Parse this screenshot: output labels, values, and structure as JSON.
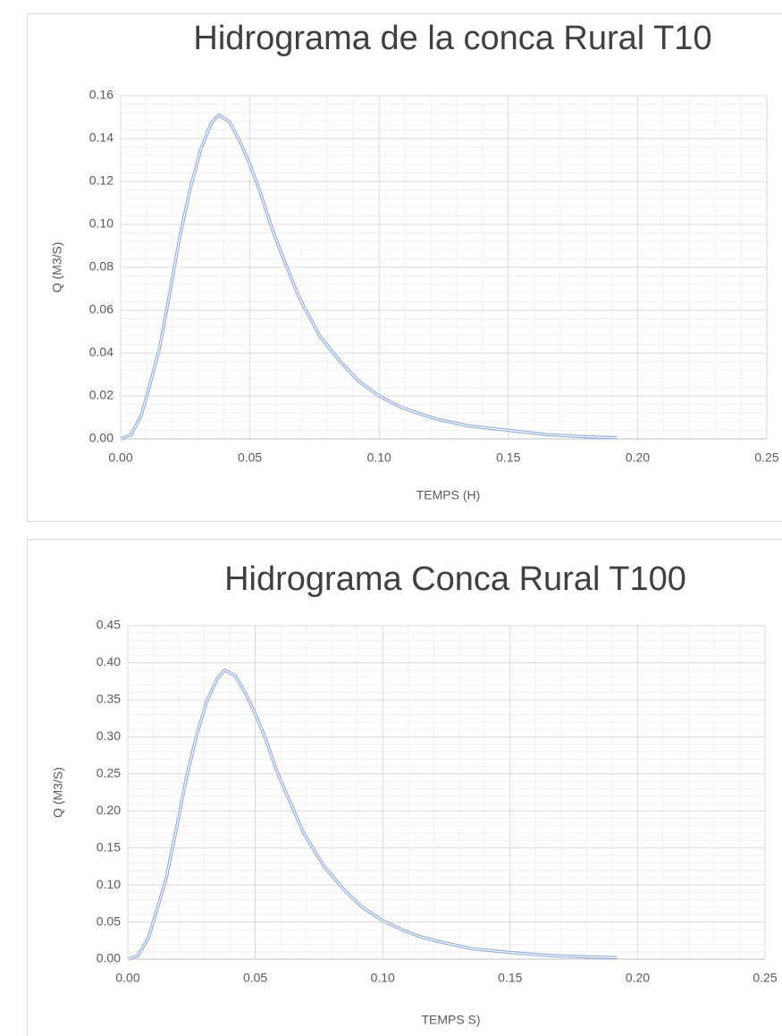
{
  "chart_data": [
    {
      "type": "line",
      "title": "Hidrograma de la conca Rural T10",
      "x_label": "TEMPS (H)",
      "y_label": "Q (M3/S)",
      "x": [
        0,
        0.004,
        0.008,
        0.011,
        0.015,
        0.019,
        0.023,
        0.027,
        0.031,
        0.035,
        0.038,
        0.042,
        0.046,
        0.05,
        0.054,
        0.058,
        0.062,
        0.069,
        0.077,
        0.085,
        0.092,
        0.1,
        0.108,
        0.115,
        0.123,
        0.135,
        0.15,
        0.165,
        0.18,
        0.192
      ],
      "series": [
        {
          "name": "Q",
          "color": "#8faadc",
          "values": [
            0,
            0.002,
            0.011,
            0.024,
            0.042,
            0.068,
            0.095,
            0.117,
            0.135,
            0.147,
            0.151,
            0.148,
            0.139,
            0.128,
            0.115,
            0.1,
            0.087,
            0.066,
            0.048,
            0.036,
            0.027,
            0.02,
            0.015,
            0.012,
            0.009,
            0.006,
            0.004,
            0.002,
            0.001,
            0.0005
          ]
        }
      ],
      "xlim": [
        0,
        0.25
      ],
      "xticks": [
        {
          "value": 0,
          "label": "0.00"
        },
        {
          "value": 0.05,
          "label": "0.05"
        },
        {
          "value": 0.1,
          "label": "0.10"
        },
        {
          "value": 0.15,
          "label": "0.15"
        },
        {
          "value": 0.2,
          "label": "0.20"
        },
        {
          "value": 0.25,
          "label": "0.25"
        }
      ],
      "ylim": [
        0,
        0.16
      ],
      "yticks": [
        {
          "value": 0,
          "label": "0.00"
        },
        {
          "value": 0.02,
          "label": "0.02"
        },
        {
          "value": 0.04,
          "label": "0.04"
        },
        {
          "value": 0.06,
          "label": "0.06"
        },
        {
          "value": 0.08,
          "label": "0.08"
        },
        {
          "value": 0.1,
          "label": "0.10"
        },
        {
          "value": 0.12,
          "label": "0.12"
        },
        {
          "value": 0.14,
          "label": "0.14"
        },
        {
          "value": 0.16,
          "label": "0.16"
        }
      ],
      "grid": true
    },
    {
      "type": "line",
      "title": "Hidrograma Conca Rural T100",
      "x_label": "TEMPS S)",
      "y_label": "Q (M3/S)",
      "x": [
        0,
        0.004,
        0.008,
        0.011,
        0.015,
        0.019,
        0.023,
        0.027,
        0.031,
        0.035,
        0.038,
        0.042,
        0.046,
        0.05,
        0.054,
        0.058,
        0.062,
        0.069,
        0.077,
        0.085,
        0.092,
        0.1,
        0.108,
        0.115,
        0.123,
        0.135,
        0.15,
        0.165,
        0.18,
        0.192
      ],
      "series": [
        {
          "name": "Q",
          "color": "#8faadc",
          "values": [
            0,
            0.005,
            0.028,
            0.062,
            0.108,
            0.175,
            0.245,
            0.302,
            0.348,
            0.378,
            0.39,
            0.383,
            0.36,
            0.331,
            0.298,
            0.258,
            0.225,
            0.17,
            0.125,
            0.093,
            0.07,
            0.052,
            0.039,
            0.03,
            0.023,
            0.014,
            0.009,
            0.005,
            0.003,
            0.002
          ]
        }
      ],
      "xlim": [
        0,
        0.25
      ],
      "xticks": [
        {
          "value": 0,
          "label": "0.00"
        },
        {
          "value": 0.05,
          "label": "0.05"
        },
        {
          "value": 0.1,
          "label": "0.10"
        },
        {
          "value": 0.15,
          "label": "0.15"
        },
        {
          "value": 0.2,
          "label": "0.20"
        },
        {
          "value": 0.25,
          "label": "0.25"
        }
      ],
      "ylim": [
        0,
        0.45
      ],
      "yticks": [
        {
          "value": 0,
          "label": "0.00"
        },
        {
          "value": 0.05,
          "label": "0.05"
        },
        {
          "value": 0.1,
          "label": "0.10"
        },
        {
          "value": 0.15,
          "label": "0.15"
        },
        {
          "value": 0.2,
          "label": "0.20"
        },
        {
          "value": 0.25,
          "label": "0.25"
        },
        {
          "value": 0.3,
          "label": "0.30"
        },
        {
          "value": 0.35,
          "label": "0.35"
        },
        {
          "value": 0.4,
          "label": "0.40"
        },
        {
          "value": 0.45,
          "label": "0.45"
        }
      ],
      "grid": true
    }
  ]
}
